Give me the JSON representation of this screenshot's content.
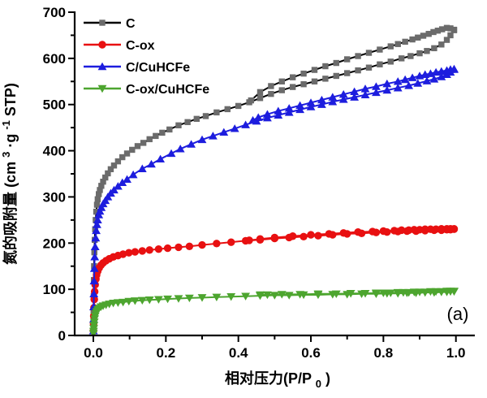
{
  "colors": {
    "axis": "#000000",
    "background": "#ffffff"
  },
  "chart_data": {
    "type": "line",
    "title": "",
    "xlabel": {
      "pre": "相对压力(P/P",
      "sub": "0",
      "post": ")"
    },
    "ylabel": {
      "pre": "氮的吸附量 (cm",
      "sup1": "3",
      "mid": "·g",
      "sup2": "-1",
      "post": " STP)"
    },
    "annotation": "(a)",
    "xlim": [
      -0.05,
      1.05
    ],
    "ylim": [
      0,
      700
    ],
    "x_ticks": [
      0.0,
      0.2,
      0.4,
      0.6,
      0.8,
      1.0
    ],
    "x_tick_labels": [
      "0.0",
      "0.2",
      "0.4",
      "0.6",
      "0.8",
      "1.0"
    ],
    "x_minor_ticks": [
      0.1,
      0.3,
      0.5,
      0.7,
      0.9
    ],
    "y_ticks": [
      0,
      100,
      200,
      300,
      400,
      500,
      600,
      700
    ],
    "y_tick_labels": [
      "0",
      "100",
      "200",
      "300",
      "400",
      "500",
      "600",
      "700"
    ],
    "y_minor_ticks": [
      50,
      150,
      250,
      350,
      450,
      550,
      650
    ],
    "grid": false,
    "legend_position": "top-left",
    "series": [
      {
        "name": "C",
        "marker": "square",
        "line_color": "#000000",
        "marker_color": "#6b6b6b",
        "branches": [
          {
            "label": "adsorption",
            "x": [
              0.0003,
              0.0006,
              0.001,
              0.0015,
              0.002,
              0.0028,
              0.0038,
              0.005,
              0.0065,
              0.008,
              0.01,
              0.012,
              0.015,
              0.018,
              0.022,
              0.027,
              0.033,
              0.04,
              0.048,
              0.057,
              0.068,
              0.08,
              0.093,
              0.107,
              0.122,
              0.138,
              0.155,
              0.172,
              0.19,
              0.21,
              0.235,
              0.26,
              0.285,
              0.31,
              0.34,
              0.37,
              0.4,
              0.43,
              0.46,
              0.49,
              0.52,
              0.55,
              0.58,
              0.61,
              0.64,
              0.67,
              0.7,
              0.73,
              0.76,
              0.79,
              0.82,
              0.85,
              0.875,
              0.9,
              0.92,
              0.94,
              0.96,
              0.975,
              0.985,
              0.995
            ],
            "y": [
              20,
              50,
              85,
              120,
              150,
              180,
              207,
              230,
              250,
              268,
              283,
              295,
              306,
              315,
              324,
              333,
              342,
              351,
              360,
              368,
              377,
              386,
              394,
              402,
              410,
              417,
              425,
              432,
              439,
              446,
              455,
              462,
              469,
              475,
              483,
              490,
              497,
              505,
              514,
              523,
              531,
              538,
              544,
              550,
              556,
              562,
              568,
              574,
              580,
              587,
              593,
              600,
              605,
              611,
              616,
              622,
              630,
              640,
              650,
              661
            ]
          },
          {
            "label": "desorption",
            "x": [
              0.995,
              0.985,
              0.975,
              0.962,
              0.95,
              0.938,
              0.925,
              0.91,
              0.895,
              0.88,
              0.86,
              0.84,
              0.82,
              0.79,
              0.76,
              0.73,
              0.7,
              0.67,
              0.64,
              0.61,
              0.58,
              0.55,
              0.52,
              0.49,
              0.46,
              0.435
            ],
            "y": [
              662,
              665,
              666,
              663,
              660,
              657,
              653,
              649,
              645,
              641,
              636,
              631,
              626,
              619,
              612,
              605,
              598,
              590,
              583,
              575,
              567,
              559,
              550,
              540,
              527,
              509
            ]
          }
        ]
      },
      {
        "name": "C-ox",
        "marker": "circle",
        "line_color": "#e81011",
        "marker_color": "#e81011",
        "branches": [
          {
            "label": "adsorption",
            "x": [
              0.0003,
              0.0007,
              0.0012,
              0.0018,
              0.0026,
              0.0036,
              0.005,
              0.007,
              0.009,
              0.012,
              0.016,
              0.021,
              0.027,
              0.035,
              0.044,
              0.055,
              0.068,
              0.082,
              0.098,
              0.115,
              0.135,
              0.155,
              0.18,
              0.205,
              0.235,
              0.265,
              0.3,
              0.34,
              0.38,
              0.42,
              0.46,
              0.5,
              0.54,
              0.58,
              0.62,
              0.66,
              0.7,
              0.74,
              0.78,
              0.81,
              0.84,
              0.865,
              0.89,
              0.915,
              0.94,
              0.96,
              0.975,
              0.985,
              0.995
            ],
            "y": [
              10,
              25,
              42,
              60,
              78,
              95,
              110,
              122,
              131,
              139,
              146,
              152,
              157,
              162,
              166,
              170,
              173,
              176,
              179,
              181,
              183,
              185,
              187,
              189,
              191,
              193,
              196,
              199,
              202,
              205,
              207,
              210,
              212,
              214,
              216,
              218,
              220,
              221,
              223,
              224,
              225,
              226,
              226,
              227,
              228,
              228,
              229,
              229,
              230
            ]
          },
          {
            "label": "desorption",
            "x": [
              0.995,
              0.985,
              0.975,
              0.96,
              0.945,
              0.93,
              0.915,
              0.9,
              0.885,
              0.87,
              0.85,
              0.83,
              0.8,
              0.77,
              0.73,
              0.69,
              0.65,
              0.6,
              0.55,
              0.5,
              0.46,
              0.43
            ],
            "y": [
              231,
              231,
              231,
              231,
              230,
              230,
              230,
              229,
              229,
              228,
              228,
              227,
              226,
              225,
              224,
              222,
              220,
              218,
              215,
              212,
              209,
              206
            ]
          }
        ]
      },
      {
        "name": "C/CuHCFe",
        "marker": "triangle-up",
        "line_color": "#1d1dde",
        "marker_color": "#1d1dde",
        "branches": [
          {
            "label": "adsorption",
            "x": [
              0.0003,
              0.0006,
              0.001,
              0.0015,
              0.002,
              0.0028,
              0.0038,
              0.005,
              0.0065,
              0.008,
              0.01,
              0.012,
              0.015,
              0.018,
              0.022,
              0.027,
              0.033,
              0.04,
              0.048,
              0.057,
              0.068,
              0.08,
              0.093,
              0.11,
              0.135,
              0.16,
              0.185,
              0.215,
              0.24,
              0.27,
              0.3,
              0.33,
              0.36,
              0.39,
              0.42,
              0.45,
              0.48,
              0.51,
              0.54,
              0.57,
              0.6,
              0.63,
              0.66,
              0.69,
              0.72,
              0.75,
              0.78,
              0.81,
              0.84,
              0.87,
              0.895,
              0.92,
              0.94,
              0.96,
              0.975,
              0.985,
              0.995
            ],
            "y": [
              10,
              35,
              62,
              90,
              118,
              145,
              170,
              192,
              211,
              227,
              240,
              250,
              261,
              269,
              277,
              285,
              292,
              300,
              308,
              315,
              323,
              331,
              338,
              348,
              361,
              371,
              382,
              394,
              404,
              414,
              424,
              432,
              440,
              448,
              456,
              464,
              471,
              477,
              483,
              489,
              495,
              500,
              506,
              511,
              516,
              521,
              526,
              531,
              536,
              541,
              546,
              551,
              555,
              560,
              565,
              570,
              576
            ]
          },
          {
            "label": "desorption",
            "x": [
              0.995,
              0.985,
              0.975,
              0.96,
              0.945,
              0.93,
              0.915,
              0.9,
              0.88,
              0.86,
              0.84,
              0.81,
              0.78,
              0.75,
              0.72,
              0.69,
              0.66,
              0.63,
              0.6,
              0.57,
              0.54,
              0.51,
              0.48,
              0.455,
              0.44
            ],
            "y": [
              577,
              576,
              574,
              572,
              570,
              567,
              565,
              562,
              558,
              554,
              550,
              545,
              539,
              534,
              528,
              522,
              516,
              510,
              504,
              498,
              492,
              486,
              479,
              472,
              466
            ]
          }
        ]
      },
      {
        "name": "C-ox/CuHCFe",
        "marker": "triangle-down",
        "line_color": "#4da52f",
        "marker_color": "#4da52f",
        "branches": [
          {
            "label": "adsorption",
            "x": [
              0.0003,
              0.0007,
              0.0012,
              0.0018,
              0.0026,
              0.0036,
              0.005,
              0.007,
              0.009,
              0.012,
              0.016,
              0.021,
              0.027,
              0.035,
              0.044,
              0.055,
              0.068,
              0.082,
              0.098,
              0.115,
              0.135,
              0.155,
              0.18,
              0.205,
              0.235,
              0.265,
              0.3,
              0.34,
              0.38,
              0.42,
              0.46,
              0.5,
              0.54,
              0.58,
              0.62,
              0.66,
              0.7,
              0.74,
              0.78,
              0.81,
              0.84,
              0.865,
              0.89,
              0.915,
              0.94,
              0.96,
              0.975,
              0.985,
              0.995
            ],
            "y": [
              4,
              9,
              15,
              22,
              29,
              36,
              42,
              48,
              52,
              56,
              59,
              62,
              64,
              66,
              68,
              70,
              71,
              72,
              74,
              75,
              76,
              77,
              78,
              79,
              80,
              81,
              82,
              83,
              84,
              85,
              86,
              87,
              87,
              88,
              88,
              89,
              89,
              90,
              90,
              91,
              91,
              92,
              92,
              93,
              93,
              94,
              94,
              95,
              95
            ]
          },
          {
            "label": "desorption",
            "x": [
              0.995,
              0.985,
              0.975,
              0.96,
              0.945,
              0.93,
              0.915,
              0.9,
              0.885,
              0.87,
              0.855,
              0.84,
              0.82,
              0.8,
              0.78,
              0.75,
              0.71,
              0.67,
              0.62,
              0.57,
              0.52,
              0.48,
              0.46
            ],
            "y": [
              96,
              96,
              96,
              95,
              95,
              95,
              94,
              94,
              94,
              93,
              93,
              93,
              92,
              92,
              92,
              91,
              91,
              90,
              90,
              89,
              89,
              88,
              88
            ]
          }
        ]
      }
    ]
  }
}
